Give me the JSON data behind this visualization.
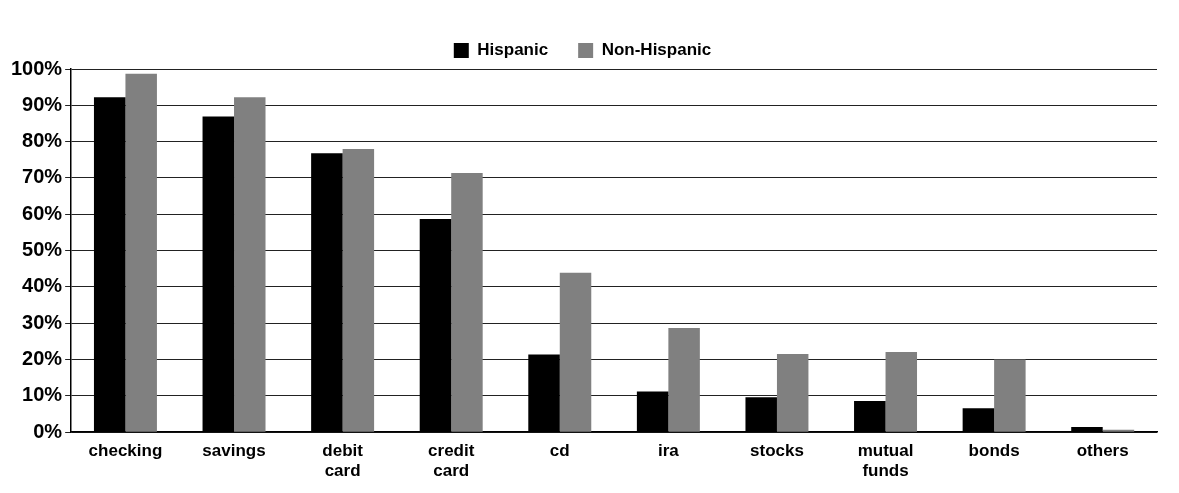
{
  "chart_data": {
    "type": "bar",
    "categories": [
      "checking",
      "savings",
      "debit card",
      "credit card",
      "cd",
      "ira",
      "stocks",
      "mutual funds",
      "bonds",
      "others"
    ],
    "series": [
      {
        "name": "Hispanic",
        "color": "#000000",
        "values": [
          92.2,
          86.9,
          76.8,
          58.7,
          21.4,
          11.2,
          9.6,
          8.6,
          6.6,
          1.4
        ]
      },
      {
        "name": "Non-Hispanic",
        "color": "#808080",
        "values": [
          98.7,
          92.2,
          78,
          71.4,
          43.9,
          28.7,
          21.5,
          22.1,
          20,
          0.7
        ]
      }
    ],
    "ylim": [
      0,
      100
    ],
    "yticks": [
      {
        "value": 0,
        "label": "0%"
      },
      {
        "value": 10,
        "label": "10%"
      },
      {
        "value": 20,
        "label": "20%"
      },
      {
        "value": 30,
        "label": "30%"
      },
      {
        "value": 40,
        "label": "40%"
      },
      {
        "value": 50,
        "label": "50%"
      },
      {
        "value": 60,
        "label": "60%"
      },
      {
        "value": 70,
        "label": "70%"
      },
      {
        "value": 80,
        "label": "80%"
      },
      {
        "value": 90,
        "label": "90%"
      },
      {
        "value": 100,
        "label": "100%"
      }
    ],
    "grid": "y",
    "legend": "top"
  }
}
